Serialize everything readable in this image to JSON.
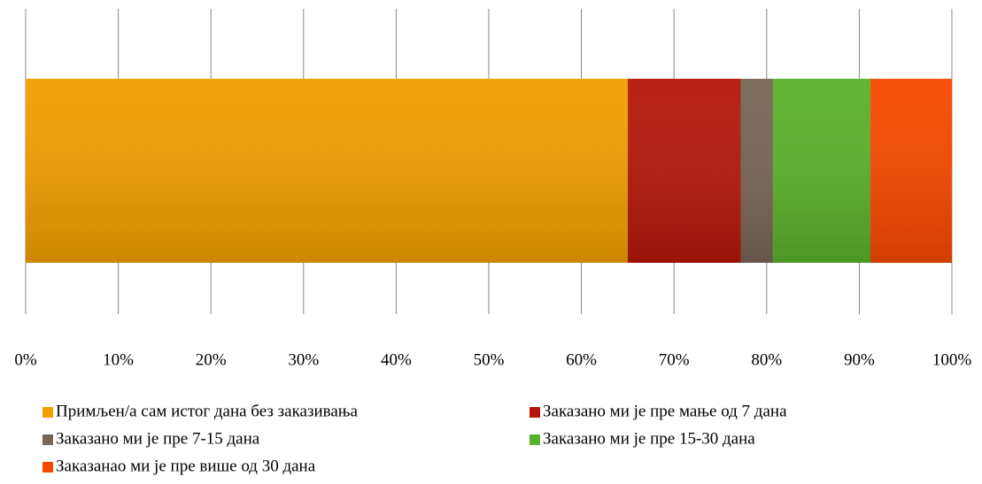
{
  "chart_data": {
    "type": "bar",
    "orientation": "horizontal",
    "stacked": true,
    "series": [
      {
        "name": "Примљен/а сам истог дана без заказивања",
        "color": "#f29e00",
        "values": [
          65
        ]
      },
      {
        "name": "Заказано ми је пре мање од 7 дана",
        "color": "#b5170a",
        "values": [
          12.2
        ]
      },
      {
        "name": "Заказано ми је пре 7-15 дана",
        "color": "#776655",
        "values": [
          3.5
        ]
      },
      {
        "name": "Заказано ми је пре 15-30 дана",
        "color": "#5ab22a",
        "values": [
          10.5
        ]
      },
      {
        "name": "Заказанао ми је пре више од 30 дана",
        "color": "#f64800",
        "values": [
          8.8
        ]
      }
    ],
    "xlim": [
      0,
      100
    ],
    "xticks": [
      {
        "value": 0,
        "label": "0%"
      },
      {
        "value": 10,
        "label": "10%"
      },
      {
        "value": 20,
        "label": "20%"
      },
      {
        "value": 30,
        "label": "30%"
      },
      {
        "value": 40,
        "label": "40%"
      },
      {
        "value": 50,
        "label": "50%"
      },
      {
        "value": 60,
        "label": "60%"
      },
      {
        "value": 70,
        "label": "70%"
      },
      {
        "value": 80,
        "label": "80%"
      },
      {
        "value": 90,
        "label": "90%"
      },
      {
        "value": 100,
        "label": "100%"
      }
    ],
    "grid": true,
    "legend": "bottom"
  }
}
